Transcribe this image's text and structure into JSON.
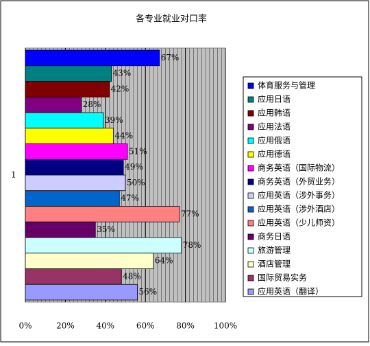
{
  "chart_data": {
    "type": "hbar",
    "title": "各专业就业对口率",
    "categories": [
      "1"
    ],
    "series": [
      {
        "name": "体育服务与管理",
        "color": "#0000ff",
        "values": [
          67
        ],
        "value_labels": [
          "67%"
        ]
      },
      {
        "name": "应用日语",
        "color": "#008080",
        "values": [
          43
        ],
        "value_labels": [
          "43%"
        ]
      },
      {
        "name": "应用韩语",
        "color": "#800000",
        "values": [
          42
        ],
        "value_labels": [
          "42%"
        ]
      },
      {
        "name": "应用法语",
        "color": "#800080",
        "values": [
          28
        ],
        "value_labels": [
          "28%"
        ]
      },
      {
        "name": "应用俄语",
        "color": "#00ffff",
        "values": [
          39
        ],
        "value_labels": [
          "39%"
        ]
      },
      {
        "name": "应用德语",
        "color": "#ffff00",
        "values": [
          44
        ],
        "value_labels": [
          "44%"
        ]
      },
      {
        "name": "商务英语（国际物流）",
        "color": "#ff00ff",
        "values": [
          51
        ],
        "value_labels": [
          "51%"
        ]
      },
      {
        "name": "商务英语（外贸业务）",
        "color": "#000080",
        "values": [
          49
        ],
        "value_labels": [
          "49%"
        ]
      },
      {
        "name": "应用英语（涉外事务）",
        "color": "#ccccff",
        "values": [
          50
        ],
        "value_labels": [
          "50%"
        ]
      },
      {
        "name": "应用英语（涉外酒店）",
        "color": "#0066cc",
        "values": [
          47
        ],
        "value_labels": [
          "47%"
        ]
      },
      {
        "name": "应用英语（少儿师资）",
        "color": "#ff8080",
        "values": [
          77
        ],
        "value_labels": [
          "77%"
        ]
      },
      {
        "name": "商务日语",
        "color": "#660066",
        "values": [
          35
        ],
        "value_labels": [
          "35%"
        ]
      },
      {
        "name": "旅游管理",
        "color": "#ccffff",
        "values": [
          78
        ],
        "value_labels": [
          "78%"
        ]
      },
      {
        "name": "酒店管理",
        "color": "#ffffcc",
        "values": [
          64
        ],
        "value_labels": [
          "64%"
        ]
      },
      {
        "name": "国际贸易实务",
        "color": "#993366",
        "values": [
          48
        ],
        "value_labels": [
          "48%"
        ]
      },
      {
        "name": "应用英语（翻译）",
        "color": "#9999ff",
        "values": [
          56
        ],
        "value_labels": [
          "56%"
        ]
      }
    ],
    "xlim": [
      0,
      100
    ],
    "xticks": [
      {
        "value": 0,
        "label": "0%"
      },
      {
        "value": 20,
        "label": "20%"
      },
      {
        "value": 40,
        "label": "40%"
      },
      {
        "value": 60,
        "label": "60%"
      },
      {
        "value": 80,
        "label": "80%"
      },
      {
        "value": 100,
        "label": "100%"
      }
    ],
    "grid": true,
    "legend": "right"
  }
}
